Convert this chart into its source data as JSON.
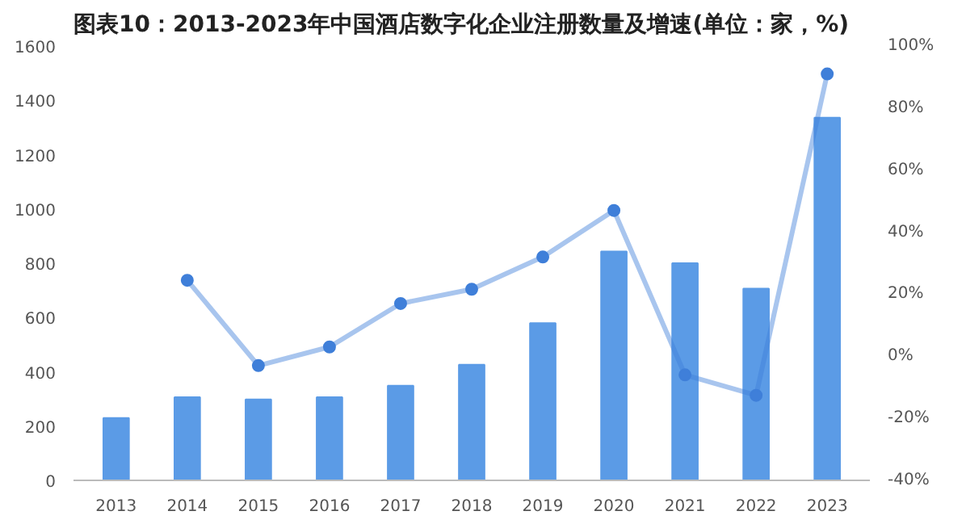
{
  "chart_data": {
    "type": "bar",
    "title": "图表10：2013-2023年中国酒店数字化企业注册数量及增速(单位：家，%)",
    "x": [
      2013,
      2014,
      2015,
      2016,
      2017,
      2018,
      2019,
      2020,
      2021,
      2022,
      2023
    ],
    "xlim": [
      2012.4,
      2023.6
    ],
    "xticks": [
      2013,
      2014,
      2015,
      2016,
      2017,
      2018,
      2019,
      2020,
      2021,
      2022,
      2023
    ],
    "series": [
      {
        "color": "#5b9be6",
        "values": [
          230,
          306,
          298,
          306,
          349,
          426,
          579,
          843,
          800,
          706,
          1336
        ]
      },
      {
        "type": "line",
        "axis": "y2",
        "color": "#3f7fd9",
        "x": [
          2014,
          2015,
          2016,
          2017,
          2018,
          2019,
          2020,
          2021,
          2022,
          2023
        ],
        "values": [
          24.5,
          -3,
          3,
          17,
          21.6,
          32,
          47,
          -6,
          -12.6,
          91
        ]
      }
    ],
    "ylim": [
      0,
      1600
    ],
    "yticks": [
      0,
      200,
      400,
      600,
      800,
      1000,
      1200,
      1400,
      1600
    ],
    "y2lim": [
      -40,
      100
    ],
    "y2ticks": [
      {
        "value": -40,
        "label": "-40%"
      },
      {
        "value": -20,
        "label": "-20%"
      },
      {
        "value": 0,
        "label": "0%"
      },
      {
        "value": 20,
        "label": "20%"
      },
      {
        "value": 40,
        "label": "40%"
      },
      {
        "value": 60,
        "label": "60%"
      },
      {
        "value": 80,
        "label": "80%"
      },
      {
        "value": 100,
        "label": "100%"
      }
    ],
    "marker": "circle",
    "grid": false
  }
}
